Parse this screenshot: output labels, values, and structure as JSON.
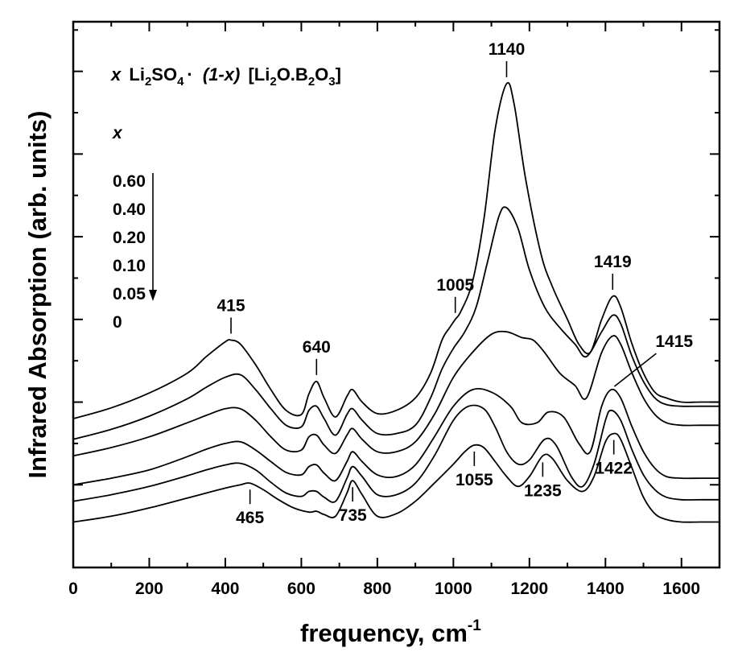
{
  "chart_data": {
    "type": "line",
    "title": "",
    "xlabel": "frequency, cm",
    "xlabel_sup": "-1",
    "ylabel": "Infrared Absorption (arb. units)",
    "xlim": [
      0,
      1700
    ],
    "x_ticks": [
      0,
      200,
      400,
      600,
      800,
      1000,
      1200,
      1400,
      1600
    ],
    "y_ticks_numbered": false,
    "grid": false,
    "formula": {
      "x": "x",
      "li2so4": "Li",
      "li2so4_sub1": "2",
      "so": "SO",
      "so_sub": "4",
      "dot": "·",
      "one_minus_x": "(1-x)",
      "bracket_open": "[Li",
      "b_sub1": "2",
      "o_b": "O.B",
      "b_sub2": "2",
      "o3": "O",
      "o3_sub": "3",
      "bracket_close": "]"
    },
    "legend_title": "x",
    "legend_entries": [
      "0.60",
      "0.40",
      "0.20",
      "0.10",
      "0.05",
      "0"
    ],
    "legend_arrow": "down",
    "series": [
      {
        "label": "0.60",
        "x": [
          0,
          100,
          200,
          300,
          350,
          400,
          415,
          440,
          480,
          520,
          560,
          600,
          620,
          640,
          660,
          690,
          720,
          735,
          760,
          800,
          850,
          900,
          940,
          970,
          990,
          1005,
          1020,
          1050,
          1080,
          1110,
          1140,
          1160,
          1190,
          1230,
          1260,
          1300,
          1330,
          1360,
          1390,
          1419,
          1440,
          1470,
          1500,
          1530,
          1560,
          1600,
          1650,
          1700
        ],
        "y": [
          5.8,
          5.93,
          6.11,
          6.35,
          6.55,
          6.73,
          6.75,
          6.7,
          6.45,
          6.15,
          5.9,
          5.85,
          6.1,
          6.25,
          6.05,
          5.82,
          6.07,
          6.15,
          6.0,
          5.86,
          5.9,
          6.05,
          6.35,
          6.75,
          6.9,
          7.0,
          7.1,
          7.45,
          8.2,
          9.3,
          9.85,
          9.6,
          8.7,
          7.8,
          7.4,
          7.0,
          6.7,
          6.6,
          7.0,
          7.28,
          7.15,
          6.7,
          6.35,
          6.12,
          6.05,
          6.0,
          6.0,
          6.0
        ]
      },
      {
        "label": "0.40",
        "x": [
          0,
          100,
          200,
          300,
          350,
          400,
          440,
          480,
          520,
          560,
          600,
          620,
          640,
          660,
          690,
          720,
          735,
          760,
          800,
          850,
          900,
          940,
          970,
          1000,
          1030,
          1060,
          1090,
          1120,
          1140,
          1170,
          1200,
          1240,
          1280,
          1320,
          1350,
          1390,
          1419,
          1440,
          1470,
          1500,
          1530,
          1560,
          1600,
          1650,
          1700
        ],
        "y": [
          5.55,
          5.67,
          5.83,
          6.04,
          6.18,
          6.3,
          6.33,
          6.15,
          5.92,
          5.72,
          5.7,
          5.9,
          5.95,
          5.8,
          5.6,
          5.85,
          5.92,
          5.78,
          5.62,
          5.62,
          5.72,
          6.05,
          6.4,
          6.65,
          6.85,
          7.15,
          7.7,
          8.25,
          8.35,
          8.1,
          7.6,
          7.15,
          6.9,
          6.7,
          6.55,
          6.85,
          7.05,
          6.95,
          6.55,
          6.25,
          6.05,
          5.97,
          5.95,
          5.95,
          5.95
        ]
      },
      {
        "label": "0.20",
        "x": [
          0,
          100,
          200,
          300,
          350,
          400,
          440,
          480,
          520,
          560,
          600,
          620,
          640,
          660,
          690,
          720,
          735,
          760,
          800,
          850,
          900,
          950,
          1000,
          1050,
          1100,
          1140,
          1180,
          1210,
          1240,
          1280,
          1320,
          1350,
          1390,
          1419,
          1440,
          1470,
          1500,
          1530,
          1560,
          1600,
          1650,
          1700
        ],
        "y": [
          5.35,
          5.45,
          5.58,
          5.75,
          5.84,
          5.92,
          5.92,
          5.78,
          5.58,
          5.42,
          5.42,
          5.58,
          5.6,
          5.48,
          5.38,
          5.6,
          5.68,
          5.55,
          5.4,
          5.4,
          5.52,
          5.85,
          6.3,
          6.6,
          6.82,
          6.85,
          6.78,
          6.75,
          6.6,
          6.35,
          6.2,
          6.05,
          6.6,
          6.8,
          6.7,
          6.35,
          6.05,
          5.85,
          5.75,
          5.72,
          5.72,
          5.72
        ]
      },
      {
        "label": "0.10",
        "x": [
          0,
          100,
          200,
          300,
          350,
          400,
          440,
          480,
          520,
          560,
          600,
          620,
          640,
          660,
          690,
          720,
          735,
          760,
          800,
          850,
          900,
          950,
          1000,
          1050,
          1100,
          1150,
          1180,
          1220,
          1250,
          1290,
          1330,
          1360,
          1390,
          1415,
          1440,
          1470,
          1500,
          1530,
          1560,
          1600,
          1650,
          1700
        ],
        "y": [
          5.0,
          5.08,
          5.18,
          5.34,
          5.43,
          5.5,
          5.52,
          5.42,
          5.28,
          5.15,
          5.12,
          5.22,
          5.24,
          5.14,
          5.05,
          5.28,
          5.4,
          5.28,
          5.12,
          5.1,
          5.24,
          5.58,
          5.95,
          6.15,
          6.12,
          5.95,
          5.75,
          5.75,
          5.88,
          5.82,
          5.5,
          5.4,
          5.95,
          6.15,
          6.05,
          5.7,
          5.4,
          5.2,
          5.1,
          5.08,
          5.08,
          5.08
        ]
      },
      {
        "label": "0.05",
        "x": [
          0,
          100,
          200,
          300,
          350,
          400,
          440,
          480,
          520,
          560,
          600,
          620,
          640,
          660,
          690,
          720,
          735,
          760,
          800,
          850,
          900,
          950,
          1000,
          1040,
          1080,
          1110,
          1140,
          1170,
          1200,
          1240,
          1270,
          1310,
          1340,
          1370,
          1400,
          1415,
          1440,
          1470,
          1500,
          1530,
          1560,
          1600,
          1650,
          1700
        ],
        "y": [
          4.8,
          4.88,
          4.98,
          5.11,
          5.18,
          5.24,
          5.26,
          5.18,
          5.03,
          4.9,
          4.86,
          4.92,
          4.92,
          4.85,
          4.8,
          5.08,
          5.22,
          5.1,
          4.88,
          4.88,
          5.02,
          5.35,
          5.78,
          5.95,
          5.92,
          5.7,
          5.4,
          5.25,
          5.3,
          5.55,
          5.48,
          5.1,
          4.98,
          5.25,
          5.78,
          5.9,
          5.78,
          5.42,
          5.12,
          4.94,
          4.85,
          4.82,
          4.82,
          4.82
        ]
      },
      {
        "label": "0",
        "x": [
          0,
          100,
          200,
          300,
          350,
          400,
          440,
          465,
          500,
          540,
          580,
          620,
          640,
          660,
          690,
          720,
          735,
          760,
          800,
          850,
          900,
          950,
          1000,
          1030,
          1055,
          1080,
          1110,
          1140,
          1170,
          1200,
          1235,
          1260,
          1300,
          1340,
          1370,
          1400,
          1422,
          1440,
          1470,
          1500,
          1530,
          1560,
          1600,
          1650,
          1700
        ],
        "y": [
          4.55,
          4.62,
          4.72,
          4.84,
          4.9,
          4.96,
          5.0,
          5.02,
          4.94,
          4.82,
          4.72,
          4.67,
          4.68,
          4.64,
          4.62,
          4.9,
          5.05,
          4.88,
          4.62,
          4.65,
          4.8,
          5.02,
          5.25,
          5.4,
          5.48,
          5.45,
          5.28,
          5.1,
          4.98,
          5.1,
          5.35,
          5.32,
          5.05,
          4.92,
          5.1,
          5.52,
          5.62,
          5.55,
          5.2,
          4.85,
          4.65,
          4.58,
          4.55,
          4.55,
          4.55
        ]
      }
    ],
    "annotations": [
      {
        "label": "415",
        "x": 415,
        "series": 0,
        "side": "above"
      },
      {
        "label": "640",
        "x": 640,
        "series": 0,
        "side": "above"
      },
      {
        "label": "1005",
        "x": 1005,
        "series": 0,
        "side": "above"
      },
      {
        "label": "1140",
        "x": 1140,
        "series": 0,
        "side": "above"
      },
      {
        "label": "1419",
        "x": 1419,
        "series": 0,
        "side": "above"
      },
      {
        "label": "465",
        "x": 465,
        "series": 5,
        "side": "below"
      },
      {
        "label": "735",
        "x": 735,
        "series": 5,
        "side": "below"
      },
      {
        "label": "1055",
        "x": 1055,
        "series": 5,
        "side": "below"
      },
      {
        "label": "1235",
        "x": 1235,
        "series": 5,
        "side": "below"
      },
      {
        "label": "1422",
        "x": 1422,
        "series": 5,
        "side": "below"
      },
      {
        "label": "1415",
        "x": 1415,
        "series": 3,
        "side": "pointer"
      }
    ]
  }
}
